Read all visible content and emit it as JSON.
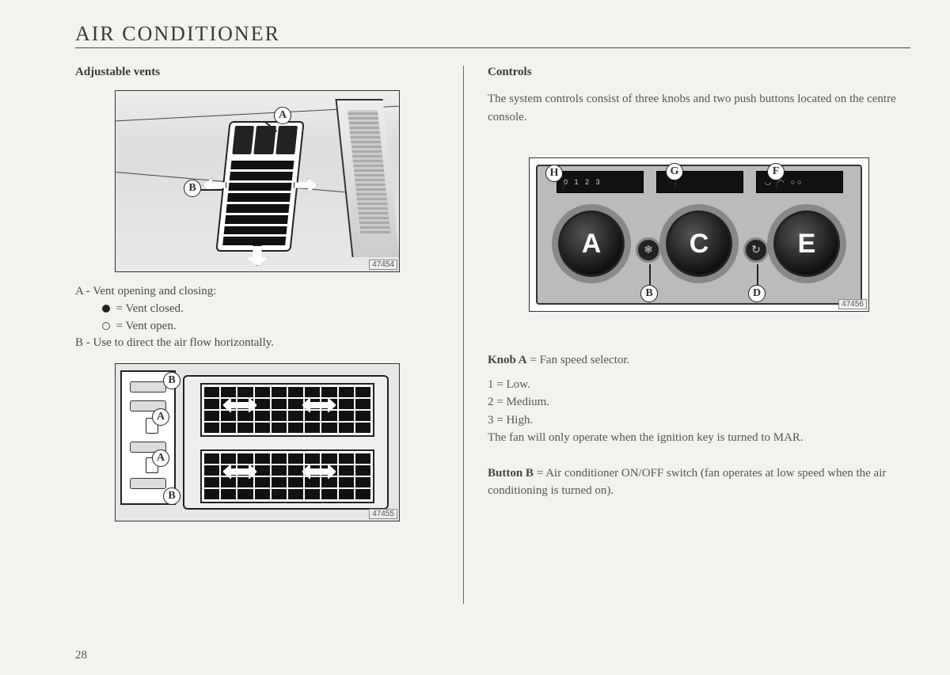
{
  "page": {
    "title": "AIR CONDITIONER",
    "number": "28"
  },
  "left": {
    "heading": "Adjustable vents",
    "fig1_num": "47454",
    "fig2_num": "47455",
    "legend_A": "A  -  Vent opening and closing:",
    "legend_A_closed": "=  Vent closed.",
    "legend_A_open": "=  Vent open.",
    "legend_B": "B  -  Use to direct the air flow horizontally.",
    "callouts": {
      "A": "A",
      "B": "B"
    }
  },
  "right": {
    "heading": "Controls",
    "intro": "The system controls consist of three knobs and two push buttons located on the centre console.",
    "fig3_num": "47456",
    "callouts": {
      "A": "A",
      "B": "B",
      "C": "C",
      "D": "D",
      "E": "E",
      "F": "F",
      "G": "G",
      "H": "H"
    },
    "knobA_label": "Knob A",
    "knobA_eq": " =  Fan speed selector.",
    "knobA_1": "1  =  Low.",
    "knobA_2": "2  =  Medium.",
    "knobA_3": "3  =  High.",
    "knobA_note": "The fan will only operate when the ignition key is turned to MAR.",
    "buttonB_label": "Button B",
    "buttonB_eq": " =  Air conditioner ON/OFF switch (fan operates at low speed when the air conditioning is turned on).",
    "display_H": "0 1 2 3"
  },
  "colors": {
    "page_bg": "#f4f2ee",
    "text": "#333333",
    "faded": "#888888",
    "line": "#444444",
    "panel_grey": "#bbbbbb",
    "black": "#111111"
  }
}
